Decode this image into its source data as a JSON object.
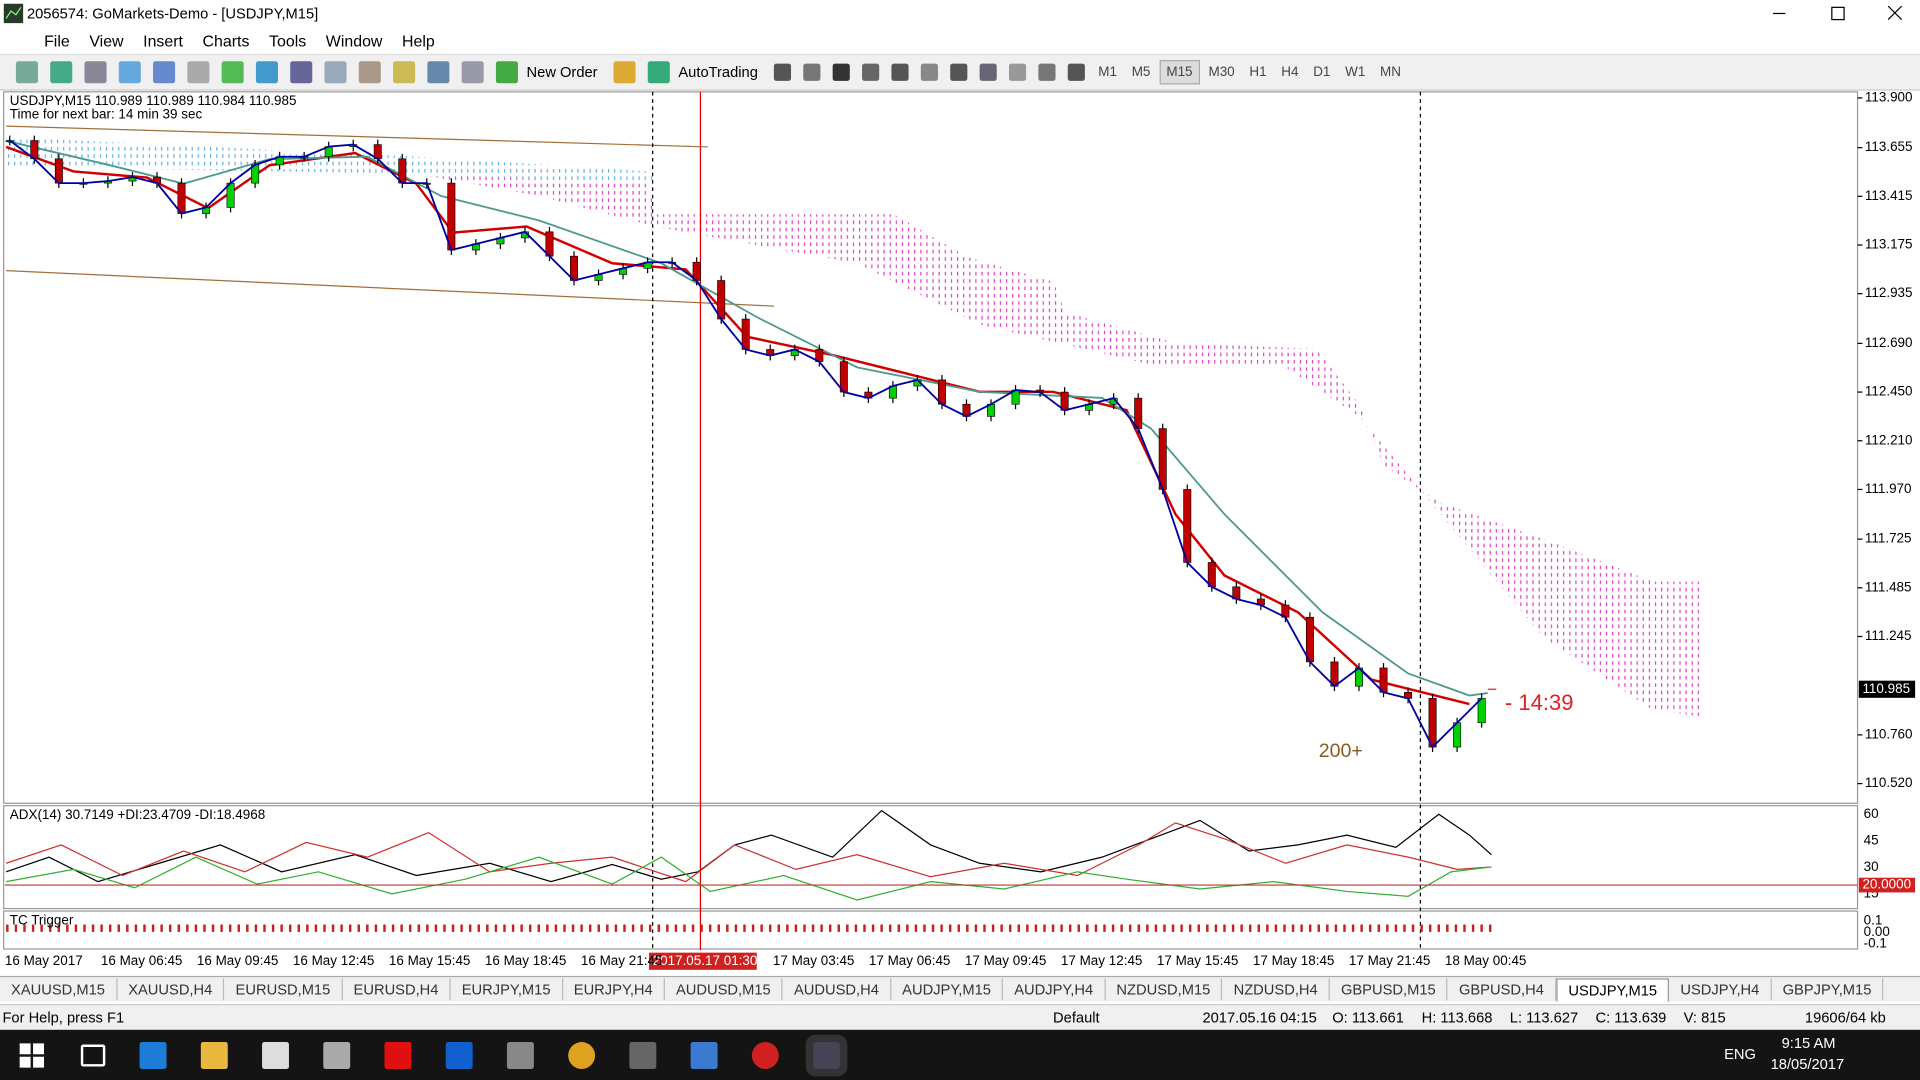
{
  "window": {
    "title": "2056574: GoMarkets-Demo - [USDJPY,M15]"
  },
  "menu": [
    "File",
    "View",
    "Insert",
    "Charts",
    "Tools",
    "Window",
    "Help"
  ],
  "toolbar": {
    "buttons": [
      "New Order",
      "AutoTrading"
    ],
    "timeframes": [
      "M1",
      "M5",
      "M15",
      "M30",
      "H1",
      "H4",
      "D1",
      "W1",
      "MN"
    ],
    "active_timeframe": "M15"
  },
  "chart_data": {
    "type": "candlestick",
    "header": "USDJPY,M15  110.989 110.989 110.984 110.985",
    "timer": "Time for next bar: 14 min 39 sec",
    "series": [
      {
        "name": "USDJPY,M15",
        "color": "#0000a0",
        "up_color": "#00d000",
        "down_color": "#c00000",
        "values": [
          113.69,
          113.6,
          113.48,
          113.48,
          113.49,
          113.51,
          113.48,
          113.33,
          113.36,
          113.48,
          113.57,
          113.61,
          113.61,
          113.66,
          113.67,
          113.6,
          113.48,
          113.48,
          113.15,
          113.18,
          113.21,
          113.24,
          113.12,
          113.0,
          113.03,
          113.06,
          113.09,
          113.09,
          113.0,
          112.81,
          112.66,
          112.63,
          112.66,
          112.6,
          112.45,
          112.42,
          112.48,
          112.51,
          112.39,
          112.33,
          112.39,
          112.46,
          112.45,
          112.36,
          112.39,
          112.42,
          112.27,
          111.97,
          111.61,
          111.49,
          111.43,
          111.4,
          111.34,
          111.12,
          111.0,
          111.09,
          110.97,
          110.94,
          110.7,
          110.82,
          110.94
        ]
      }
    ],
    "ylim": [
      110.429,
      113.924
    ],
    "yticks": [
      {
        "value": 113.9,
        "label": "113.900"
      },
      113.655,
      113.415,
      113.175,
      112.935,
      {
        "value": 112.69,
        "label": "112.690"
      },
      {
        "value": 112.45,
        "label": "112.450"
      },
      {
        "value": 112.21,
        "label": "112.210"
      },
      {
        "value": 111.97,
        "label": "111.970"
      },
      111.725,
      111.485,
      111.245,
      {
        "value": 110.76,
        "label": "110.760"
      },
      {
        "value": 110.52,
        "label": "110.520"
      }
    ],
    "current_price": 110.985,
    "annotations": [
      "- 14:39",
      "200+"
    ],
    "x_labels": [
      "16 May 2017",
      "16 May 06:45",
      "16 May 09:45",
      "16 May 12:45",
      "16 May 15:45",
      "16 May 18:45",
      "16 May 21:45",
      "17 May 03:45",
      "17 May 06:45",
      "17 May 09:45",
      "17 May 12:45",
      "17 May 15:45",
      "17 May 18:45",
      "17 May 21:45",
      "18 May 00:45"
    ],
    "cursor_time": "2017.05.17 01:30"
  },
  "adx": {
    "label": "ADX(14) 30.7149 +DI:23.4709 -DI:18.4968",
    "ylim": [
      7.4,
      64.2
    ],
    "yticks": [
      60,
      45,
      30,
      15
    ],
    "level": {
      "value": 20,
      "label": "20.0000"
    }
  },
  "tc_trigger": {
    "label": "TC Trigger",
    "ylim": [
      -0.142,
      0.174
    ],
    "yticks": [
      0.1,
      {
        "value": 0,
        "label": "0.00"
      },
      -0.1
    ]
  },
  "tabs": [
    "XAUUSD,M15",
    "XAUUSD,H4",
    "EURUSD,M15",
    "EURUSD,H4",
    "EURJPY,M15",
    "EURJPY,H4",
    "AUDUSD,M15",
    "AUDUSD,H4",
    "AUDJPY,M15",
    "AUDJPY,H4",
    "NZDUSD,M15",
    "NZDUSD,H4",
    "GBPUSD,M15",
    "GBPUSD,H4",
    "USDJPY,M15",
    "USDJPY,H4",
    "GBPJPY,M15"
  ],
  "active_tab": "USDJPY,M15",
  "status": [
    "For Help, press F1",
    "Default",
    "2017.05.16 04:15",
    "O: 113.661",
    "H: 113.668",
    "L: 113.627",
    "C: 113.639",
    "V: 815",
    "19606/64 kb"
  ],
  "taskbar": {
    "language": "ENG",
    "time": "9:15 AM",
    "date": "18/05/2017"
  }
}
